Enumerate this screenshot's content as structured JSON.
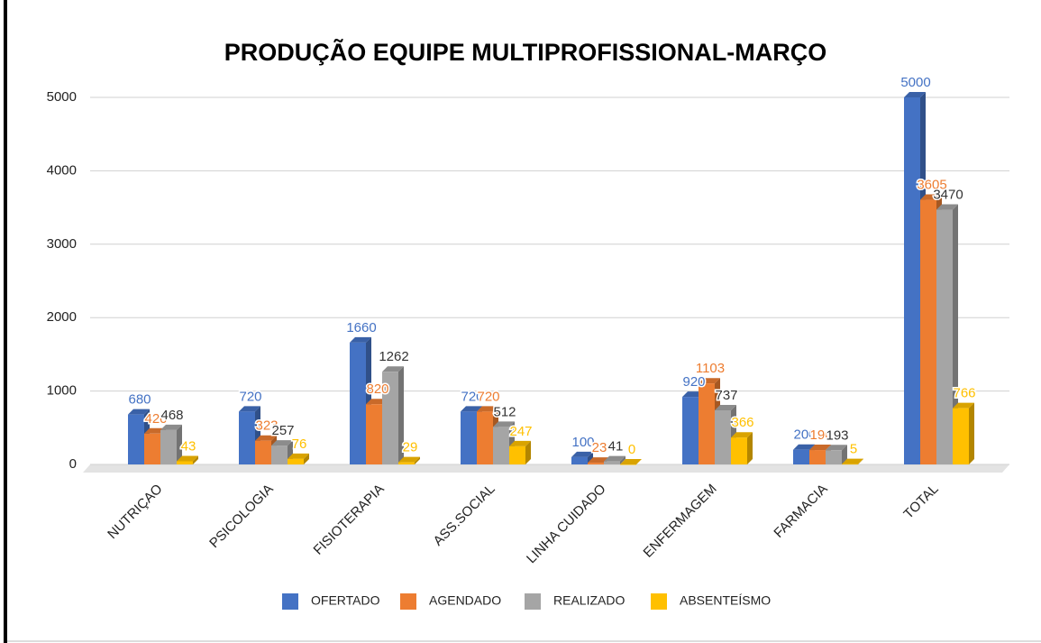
{
  "chart_data": {
    "type": "bar3d",
    "title": "PRODUÇÃO EQUIPE MULTIPROFISSIONAL-MARÇO",
    "categories": [
      "NUTRIÇAO",
      "PSICOLOGIA",
      "FISIOTERAPIA",
      "ASS.SOCIAL",
      "LINHA CUIDADO",
      "ENFERMAGEM",
      "FARMACIA",
      "TOTAL"
    ],
    "series": [
      {
        "name": "OFERTADO",
        "color": "#4472c4",
        "values": [
          680,
          720,
          1660,
          720,
          100,
          920,
          200,
          5000
        ]
      },
      {
        "name": "AGENDADO",
        "color": "#ed7d31",
        "values": [
          420,
          323,
          820,
          720,
          23,
          1103,
          196,
          3605
        ]
      },
      {
        "name": "REALIZADO",
        "color": "#a5a5a5",
        "values": [
          468,
          257,
          1262,
          512,
          41,
          737,
          193,
          3470
        ]
      },
      {
        "name": "ABSENTEÍSMO",
        "color": "#ffc000",
        "values": [
          43,
          76,
          29,
          247,
          0,
          366,
          5,
          766
        ]
      }
    ],
    "ylim": [
      0,
      5000
    ],
    "yticks": [
      0,
      1000,
      2000,
      3000,
      4000,
      5000
    ],
    "grid": true,
    "legend": "bottom"
  }
}
